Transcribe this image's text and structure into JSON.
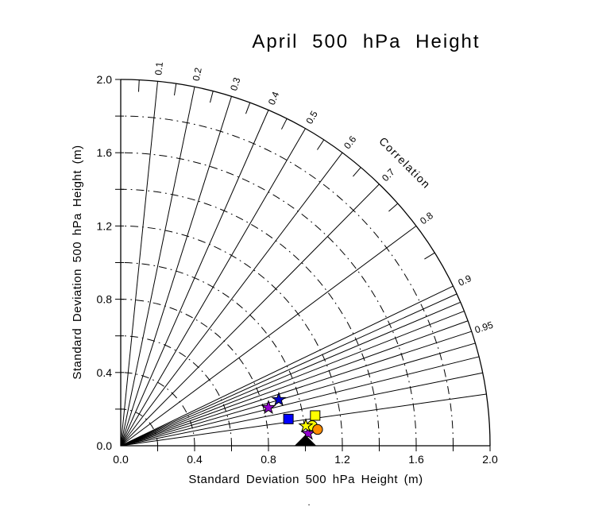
{
  "chart_data": {
    "type": "scatter",
    "variant": "taylor-diagram",
    "title": "April 500 hPa Height",
    "xlabel": "Standard Deviation 500 hPa Height (m)",
    "ylabel": "Standard Deviation 500 hPa Height (m)",
    "correlation_axis_label": "Correlation",
    "axis_range": [
      0,
      2.0
    ],
    "axis_tick_values": [
      0.0,
      0.4,
      0.8,
      1.2,
      1.6,
      2.0
    ],
    "axis_tick_labels": [
      "0.0",
      "0.4",
      "0.8",
      "1.2",
      "1.6",
      "2.0"
    ],
    "axis_minor_tick_step": 0.2,
    "std_dev_arc_values": [
      0.2,
      0.4,
      0.6,
      0.8,
      1.0,
      1.2,
      1.4,
      1.6,
      1.8
    ],
    "outer_arc_radius": 2.0,
    "grid_on": true,
    "grid_color": "#000000",
    "correlation_radial_lines": [
      0.1,
      0.2,
      0.3,
      0.4,
      0.5,
      0.6,
      0.7,
      0.8,
      0.9,
      0.91,
      0.92,
      0.93,
      0.94,
      0.95,
      0.96,
      0.97,
      0.98,
      0.99
    ],
    "correlation_minor_ticks": [
      0.05,
      0.15,
      0.25,
      0.35,
      0.45,
      0.55,
      0.65,
      0.75,
      0.85
    ],
    "correlation_tick_labels": [
      {
        "value": 0.1,
        "label": "0.1"
      },
      {
        "value": 0.2,
        "label": "0.2"
      },
      {
        "value": 0.3,
        "label": "0.3"
      },
      {
        "value": 0.4,
        "label": "0.4"
      },
      {
        "value": 0.5,
        "label": "0.5"
      },
      {
        "value": 0.6,
        "label": "0.6"
      },
      {
        "value": 0.7,
        "label": "0.7"
      },
      {
        "value": 0.8,
        "label": "0.8"
      },
      {
        "value": 0.9,
        "label": "0.9"
      },
      {
        "value": 0.95,
        "label": "0.95"
      }
    ],
    "reference_marker": {
      "name": "reference-triangle",
      "shape": "triangle",
      "color": "#000000",
      "std_dev": 1.0,
      "correlation": 1.0,
      "x": 1.0,
      "y": 0.0
    },
    "points": [
      {
        "name": "blue-star",
        "shape": "star",
        "color": "#0000cd",
        "x": 0.856,
        "y": 0.252,
        "std_dev": 0.892,
        "correlation": 0.959
      },
      {
        "name": "purple-star-1",
        "shape": "star",
        "color": "#9400d3",
        "x": 0.8,
        "y": 0.208,
        "std_dev": 0.827,
        "correlation": 0.968
      },
      {
        "name": "blue-square",
        "shape": "square",
        "color": "#0000ff",
        "x": 0.908,
        "y": 0.146,
        "std_dev": 0.92,
        "correlation": 0.987
      },
      {
        "name": "yellow-square",
        "shape": "square",
        "color": "#ffff00",
        "x": 1.053,
        "y": 0.165,
        "std_dev": 1.066,
        "correlation": 0.988
      },
      {
        "name": "purple-star-2",
        "shape": "star",
        "color": "#9400d3",
        "x": 1.015,
        "y": 0.067,
        "std_dev": 1.017,
        "correlation": 0.998
      },
      {
        "name": "yellow-circle",
        "shape": "circle",
        "color": "#ffff00",
        "x": 1.037,
        "y": 0.11,
        "std_dev": 1.043,
        "correlation": 0.994
      },
      {
        "name": "orange-circle",
        "shape": "circle",
        "color": "#ff8c00",
        "x": 1.066,
        "y": 0.089,
        "std_dev": 1.07,
        "correlation": 0.997
      },
      {
        "name": "yellow-star",
        "shape": "star",
        "color": "#ffff00",
        "x": 1.002,
        "y": 0.108,
        "std_dev": 1.008,
        "correlation": 0.994
      }
    ],
    "stray_mark": "."
  }
}
